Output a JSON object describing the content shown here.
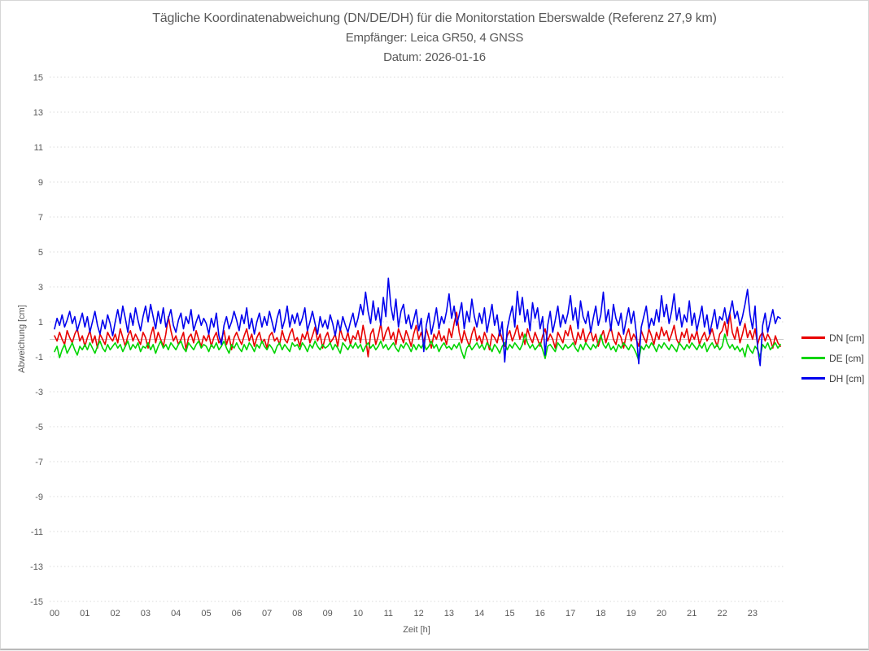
{
  "title": {
    "line1": "Tägliche Koordinatenabweichung (DN/DE/DH) für die Monitorstation Eberswalde (Referenz 27,9 km)",
    "line2": "Empfänger: Leica GR50, 4 GNSS",
    "line3": "Datum: 2026-01-16"
  },
  "colors": {
    "grid": "#d9d9d9",
    "zero_line": "#c6c6c6",
    "text": "#595959",
    "dn": "#e80000",
    "de": "#00d400",
    "dh": "#0000ee"
  },
  "y_axis": {
    "label": "Abweichung [cm]",
    "ticks": [
      15,
      13,
      11,
      9,
      7,
      5,
      3,
      1,
      -1,
      -3,
      -5,
      -7,
      -9,
      -11,
      -13,
      -15
    ]
  },
  "x_axis": {
    "label": "Zeit [h]",
    "ticks": [
      "00",
      "01",
      "02",
      "03",
      "04",
      "05",
      "06",
      "07",
      "08",
      "09",
      "10",
      "11",
      "12",
      "13",
      "14",
      "15",
      "16",
      "17",
      "18",
      "19",
      "20",
      "21",
      "22",
      "23"
    ]
  },
  "legend": {
    "items": [
      {
        "label": "DN [cm]",
        "color": "#e80000"
      },
      {
        "label": "DE [cm]",
        "color": "#00d400"
      },
      {
        "label": "DH [cm]",
        "color": "#0000ee"
      }
    ]
  },
  "chart_data": {
    "type": "line",
    "title": "Tägliche Koordinatenabweichung (DN/DE/DH) für die Monitorstation Eberswalde (Referenz 27,9 km)",
    "subtitle": [
      "Empfänger: Leica GR50, 4 GNSS",
      "Datum: 2026-01-16"
    ],
    "xlabel": "Zeit [h]",
    "ylabel": "Abweichung [cm]",
    "ylim": [
      -15,
      15
    ],
    "xlim_hours": [
      0,
      24
    ],
    "grid": "dotted-horizontal",
    "legend_position": "right-middle",
    "points_per_hour": 12,
    "series": [
      {
        "name": "DN [cm]",
        "color": "#e80000",
        "values": [
          0.2,
          -0.1,
          0.4,
          0.0,
          -0.3,
          0.5,
          0.1,
          -0.2,
          0.3,
          0.6,
          -0.1,
          0.2,
          -0.4,
          0.1,
          0.5,
          -0.2,
          0.2,
          -0.5,
          0.3,
          0.0,
          -0.3,
          0.4,
          0.1,
          -0.1,
          0.3,
          -0.2,
          0.6,
          0.1,
          -0.4,
          0.2,
          0.5,
          -0.1,
          0.3,
          0.0,
          -0.3,
          0.4,
          0.1,
          -0.5,
          0.2,
          0.7,
          -0.2,
          0.4,
          0.0,
          -0.4,
          0.3,
          1.3,
          0.5,
          -0.1,
          0.2,
          -0.3,
          0.0,
          0.4,
          -0.6,
          0.1,
          0.3,
          -0.2,
          0.5,
          0.0,
          -0.4,
          0.2,
          -0.1,
          0.3,
          -0.4,
          0.1,
          0.4,
          -0.2,
          0.0,
          0.5,
          -0.3,
          0.2,
          -0.6,
          0.1,
          0.4,
          0.0,
          -0.3,
          0.2,
          0.6,
          -0.1,
          0.3,
          -0.4,
          0.1,
          0.4,
          -0.2,
          0.0,
          -0.5,
          0.2,
          0.4,
          -0.1,
          0.1,
          -0.3,
          0.5,
          0.0,
          -0.2,
          0.3,
          0.6,
          -0.1,
          0.1,
          -0.4,
          0.3,
          0.0,
          0.5,
          -0.2,
          0.2,
          0.7,
          -0.1,
          0.3,
          -0.5,
          0.1,
          0.4,
          -0.2,
          0.0,
          0.3,
          -0.4,
          0.6,
          0.1,
          -0.1,
          0.4,
          -0.3,
          0.2,
          0.0,
          0.5,
          -0.2,
          0.8,
          0.1,
          -1.0,
          0.3,
          0.6,
          -0.3,
          0.2,
          0.9,
          -0.1,
          0.4,
          0.7,
          0.0,
          0.4,
          -0.3,
          0.6,
          0.2,
          -0.2,
          0.5,
          0.1,
          -0.4,
          0.3,
          0.8,
          0.0,
          0.4,
          -0.2,
          0.6,
          0.1,
          -0.5,
          0.3,
          0.0,
          0.5,
          -0.1,
          0.2,
          -0.3,
          0.6,
          0.1,
          0.9,
          1.55,
          0.4,
          -0.2,
          0.5,
          0.0,
          -0.4,
          0.3,
          0.7,
          -0.1,
          0.2,
          -0.3,
          0.4,
          0.0,
          -0.6,
          0.3,
          0.1,
          -0.2,
          0.5,
          0.0,
          -0.4,
          0.2,
          0.5,
          -0.1,
          0.3,
          0.8,
          0.0,
          0.4,
          -0.3,
          0.6,
          0.1,
          -0.2,
          0.4,
          0.0,
          -0.4,
          0.2,
          0.6,
          -0.1,
          0.3,
          0.0,
          -0.5,
          0.4,
          0.1,
          -0.2,
          0.5,
          0.2,
          0.8,
          0.1,
          -0.3,
          0.4,
          0.0,
          0.6,
          -0.2,
          0.2,
          0.5,
          -0.1,
          0.3,
          -0.4,
          0.1,
          0.5,
          -0.2,
          0.3,
          0.7,
          0.0,
          -0.3,
          0.4,
          0.1,
          -0.5,
          0.2,
          0.6,
          -0.1,
          0.3,
          0.0,
          -0.4,
          0.5,
          0.1,
          -0.2,
          0.6,
          0.2,
          -0.3,
          0.4,
          0.0,
          0.7,
          0.2,
          0.5,
          -0.1,
          0.3,
          0.8,
          0.0,
          -0.3,
          0.4,
          0.1,
          0.6,
          -0.2,
          0.3,
          0.0,
          0.5,
          -0.3,
          0.1,
          0.4,
          -0.1,
          0.2,
          0.6,
          0.0,
          -0.4,
          0.3,
          0.5,
          1.0,
          0.2,
          1.5,
          0.4,
          0.0,
          0.7,
          -0.2,
          0.3,
          0.9,
          0.1,
          0.5,
          0.0,
          0.6,
          -0.3,
          0.2,
          0.4,
          -0.1,
          0.3,
          0.0,
          -0.5,
          0.2,
          -0.2,
          -0.4
        ]
      },
      {
        "name": "DE [cm]",
        "color": "#00d400",
        "values": [
          -0.7,
          -0.4,
          -1.05,
          -0.6,
          -0.3,
          -0.8,
          -0.5,
          -0.2,
          -0.6,
          -0.9,
          -0.4,
          -0.6,
          -0.3,
          -0.6,
          -0.2,
          -0.5,
          -0.8,
          -0.4,
          -0.1,
          -0.5,
          -0.7,
          -0.3,
          -0.6,
          -0.4,
          -0.2,
          -0.5,
          -0.3,
          -0.7,
          -0.4,
          -0.1,
          -0.6,
          -0.3,
          -0.5,
          -0.2,
          -0.7,
          -0.4,
          -0.5,
          -0.2,
          -0.6,
          -0.3,
          -0.8,
          -0.4,
          -0.1,
          -0.5,
          -0.3,
          -0.6,
          -0.2,
          -0.4,
          -0.6,
          -0.3,
          -0.1,
          -0.5,
          -0.7,
          -0.2,
          -0.4,
          -0.6,
          -0.3,
          -0.1,
          -0.5,
          -0.3,
          -0.4,
          -0.7,
          -0.3,
          -0.5,
          -0.2,
          -0.6,
          -0.4,
          -0.1,
          -0.5,
          -0.8,
          -0.3,
          -0.5,
          -0.2,
          -0.5,
          -0.7,
          -0.3,
          -0.6,
          -0.2,
          -0.4,
          -0.7,
          -0.3,
          -0.5,
          -0.1,
          -0.4,
          -0.6,
          -0.3,
          -0.5,
          -0.8,
          -0.4,
          -0.2,
          -0.6,
          -0.3,
          -0.5,
          -0.7,
          -0.2,
          -0.4,
          -0.3,
          -0.6,
          -0.2,
          -0.4,
          -0.7,
          -0.3,
          -0.5,
          -0.1,
          -0.4,
          -0.6,
          -0.3,
          -0.5,
          -0.4,
          -0.2,
          -0.6,
          -0.3,
          -0.5,
          -0.8,
          -0.2,
          -0.4,
          -0.6,
          -0.3,
          -0.5,
          -0.2,
          -0.5,
          -0.3,
          -0.7,
          -0.4,
          -0.2,
          -0.5,
          -0.3,
          -0.6,
          -0.4,
          -0.1,
          -0.5,
          -0.3,
          -0.6,
          -0.4,
          -0.2,
          -0.5,
          -0.7,
          -0.3,
          -0.5,
          -0.2,
          -0.4,
          -0.7,
          -0.3,
          -0.6,
          -0.3,
          -0.5,
          -0.2,
          -0.6,
          -0.4,
          -0.1,
          -0.5,
          -0.3,
          -0.7,
          -0.4,
          -0.2,
          -0.5,
          -0.4,
          -0.6,
          -0.3,
          -0.5,
          -0.2,
          -0.7,
          -1.1,
          -0.5,
          -0.3,
          -0.6,
          -0.4,
          -0.2,
          -0.5,
          -0.3,
          -0.6,
          -0.2,
          -0.4,
          -0.7,
          -0.3,
          -0.5,
          -0.8,
          -0.4,
          -0.2,
          -0.6,
          -0.3,
          -0.5,
          -0.2,
          -0.4,
          -0.6,
          -0.3,
          0.3,
          -0.2,
          -0.5,
          -0.3,
          -0.6,
          -0.4,
          -0.2,
          -0.6,
          -1.1,
          -0.4,
          -0.3,
          -0.5,
          -0.7,
          -0.2,
          -0.4,
          -0.6,
          -0.3,
          -0.5,
          -0.4,
          -0.2,
          -0.5,
          -0.7,
          -0.3,
          -0.6,
          -0.2,
          -0.4,
          -0.6,
          -0.3,
          -0.5,
          -0.2,
          0.25,
          -0.3,
          -0.5,
          -0.2,
          -0.6,
          -0.4,
          -0.7,
          -0.3,
          -0.5,
          -0.2,
          -0.4,
          -0.6,
          -0.3,
          -0.5,
          -0.8,
          -1.2,
          -0.4,
          -0.6,
          -0.3,
          -0.5,
          -0.2,
          -0.4,
          -0.7,
          -0.3,
          -0.5,
          -0.2,
          -0.4,
          -0.6,
          -0.3,
          -0.5,
          -0.7,
          -0.2,
          -0.4,
          -0.6,
          -0.3,
          -0.5,
          -0.2,
          -0.4,
          -0.6,
          -0.3,
          -0.5,
          -0.2,
          -0.7,
          -0.4,
          -0.2,
          -0.5,
          -0.3,
          -0.6,
          -0.4,
          0.3,
          -0.2,
          -0.5,
          -0.3,
          -0.6,
          -0.4,
          -0.7,
          -0.5,
          -1.0,
          -0.3,
          -0.6,
          -0.8,
          -0.4,
          -0.6,
          -1.0,
          -0.3,
          -0.5,
          -0.2,
          -0.6,
          -0.4,
          -0.2,
          -0.5,
          -0.3
        ]
      },
      {
        "name": "DH [cm]",
        "color": "#0000ee",
        "values": [
          0.6,
          1.2,
          0.8,
          1.4,
          0.7,
          1.1,
          1.6,
          0.9,
          1.3,
          0.5,
          1.0,
          1.5,
          0.7,
          1.3,
          0.4,
          1.0,
          1.6,
          0.8,
          0.3,
          1.1,
          0.6,
          1.4,
          0.9,
          0.2,
          1.0,
          1.7,
          0.9,
          1.9,
          1.2,
          0.4,
          1.5,
          0.8,
          1.8,
          1.1,
          0.5,
          1.3,
          1.9,
          1.0,
          2.0,
          1.3,
          0.6,
          1.6,
          0.9,
          1.8,
          0.7,
          1.2,
          1.7,
          0.8,
          0.4,
          1.1,
          1.5,
          0.6,
          1.3,
          0.9,
          1.7,
          0.5,
          1.0,
          1.4,
          0.8,
          1.2,
          0.9,
          0.3,
          1.2,
          0.7,
          1.5,
          0.2,
          -0.3,
          0.8,
          1.3,
          0.6,
          1.0,
          1.6,
          1.1,
          0.5,
          1.4,
          0.9,
          1.8,
          0.6,
          1.2,
          0.3,
          1.0,
          1.5,
          0.7,
          1.3,
          0.8,
          1.6,
          1.0,
          0.4,
          1.2,
          1.7,
          0.6,
          1.1,
          1.9,
          0.7,
          1.4,
          0.9,
          1.5,
          0.8,
          1.2,
          1.8,
          0.5,
          1.0,
          1.6,
          0.9,
          0.3,
          1.3,
          0.7,
          1.1,
          0.6,
          1.4,
          0.9,
          0.2,
          1.1,
          0.5,
          1.3,
          0.8,
          0.4,
          1.0,
          1.5,
          0.7,
          1.2,
          2.0,
          1.4,
          2.7,
          1.6,
          0.9,
          2.2,
          1.1,
          1.8,
          0.8,
          2.4,
          1.3,
          3.5,
          1.9,
          1.1,
          2.3,
          0.7,
          1.6,
          2.0,
          0.9,
          1.4,
          0.6,
          1.1,
          1.7,
          0.5,
          1.2,
          -0.7,
          0.8,
          1.5,
          0.3,
          1.0,
          1.8,
          0.6,
          1.3,
          0.9,
          1.6,
          2.6,
          1.2,
          1.9,
          0.8,
          1.4,
          2.1,
          0.6,
          1.6,
          1.0,
          2.3,
          1.3,
          0.7,
          1.5,
          0.9,
          1.8,
          0.4,
          1.2,
          2.0,
          0.8,
          1.4,
          0.2,
          1.0,
          -1.3,
          0.6,
          1.3,
          1.9,
          0.7,
          2.75,
          1.4,
          2.4,
          1.0,
          1.7,
          0.5,
          2.1,
          1.2,
          1.8,
          0.6,
          1.3,
          -0.9,
          0.8,
          1.6,
          0.4,
          1.1,
          1.9,
          0.7,
          1.4,
          0.9,
          1.5,
          2.5,
          1.1,
          1.8,
          0.6,
          2.2,
          1.3,
          0.9,
          1.6,
          0.4,
          1.2,
          1.9,
          0.8,
          1.4,
          2.7,
          1.0,
          1.7,
          0.5,
          2.0,
          1.2,
          0.8,
          1.5,
          0.3,
          1.1,
          1.8,
          0.9,
          1.6,
          0.4,
          -1.4,
          0.7,
          1.3,
          1.9,
          0.6,
          1.2,
          0.8,
          1.7,
          1.0,
          2.5,
          1.3,
          2.0,
          0.9,
          1.6,
          2.6,
          1.1,
          1.8,
          0.7,
          1.4,
          1.0,
          2.2,
          0.8,
          1.5,
          0.5,
          1.2,
          1.9,
          0.7,
          1.4,
          0.3,
          1.0,
          1.7,
          0.6,
          1.3,
          1.1,
          1.8,
          0.9,
          1.5,
          2.2,
          1.2,
          1.6,
          0.8,
          1.3,
          2.0,
          2.85,
          1.4,
          0.6,
          1.9,
          -0.5,
          -1.5,
          0.8,
          1.5,
          0.4,
          1.1,
          1.7,
          0.9,
          1.3,
          1.2
        ]
      }
    ]
  }
}
